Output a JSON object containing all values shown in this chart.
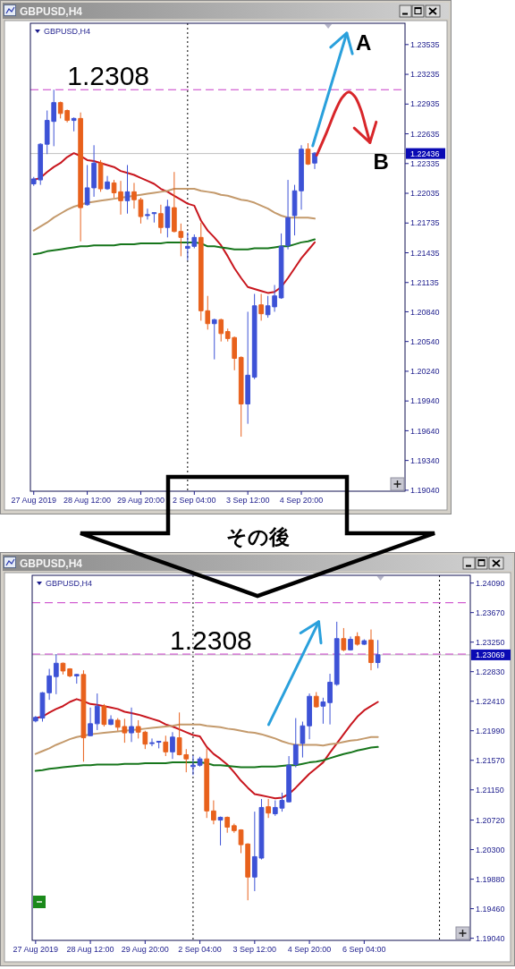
{
  "chart_data": [
    {
      "type": "candlestick",
      "title": "GBPUSD,H4",
      "subtitle": "GBPUSD,H4",
      "categories": [
        "27 Aug 2019",
        null,
        null,
        null,
        null,
        null,
        null,
        null,
        "28 Aug 12:00",
        null,
        null,
        null,
        null,
        null,
        null,
        null,
        "29 Aug 20:00",
        null,
        null,
        null,
        null,
        null,
        null,
        null,
        "2 Sep 04:00",
        null,
        null,
        null,
        null,
        null,
        null,
        null,
        "3 Sep 12:00",
        null,
        null,
        null,
        null,
        null,
        null,
        null,
        "4 Sep 20:00",
        null,
        null,
        null,
        null,
        null,
        null,
        null,
        null,
        null,
        null,
        null,
        null,
        null,
        null,
        null
      ],
      "ohlc": [
        [
          1.2213,
          1.222,
          1.2211,
          1.2218
        ],
        [
          1.2217,
          1.2254,
          1.2212,
          1.2253
        ],
        [
          1.2253,
          1.2287,
          1.2243,
          1.2277
        ],
        [
          1.2276,
          1.2308,
          1.2251,
          1.2295
        ],
        [
          1.2295,
          1.2296,
          1.2279,
          1.2284
        ],
        [
          1.2287,
          1.2288,
          1.2275,
          1.2277
        ],
        [
          1.2277,
          1.228,
          1.2266,
          1.2279
        ],
        [
          1.2279,
          1.2285,
          1.2155,
          1.2189
        ],
        [
          1.2192,
          1.2232,
          1.2191,
          1.2209
        ],
        [
          1.2209,
          1.2252,
          1.22,
          1.2234
        ],
        [
          1.2234,
          1.2237,
          1.2205,
          1.2208
        ],
        [
          1.2208,
          1.2221,
          1.2207,
          1.2215
        ],
        [
          1.2214,
          1.2217,
          1.2199,
          1.2204
        ],
        [
          1.2205,
          1.2216,
          1.2182,
          1.2196
        ],
        [
          1.2196,
          1.2232,
          1.2183,
          1.2205
        ],
        [
          1.2205,
          1.2214,
          1.2188,
          1.2197
        ],
        [
          1.2197,
          1.2199,
          1.2173,
          1.218
        ],
        [
          1.2181,
          1.2188,
          1.2177,
          1.2182
        ],
        [
          1.2183,
          1.2184,
          1.2174,
          1.2184
        ],
        [
          1.2183,
          1.2192,
          1.2163,
          1.2169
        ],
        [
          1.2169,
          1.2197,
          1.2159,
          1.219
        ],
        [
          1.2189,
          1.2225,
          1.2164,
          1.2165
        ],
        [
          1.2165,
          1.2173,
          1.214,
          1.2159
        ],
        [
          1.2148,
          1.2164,
          1.2136,
          1.215
        ],
        [
          1.215,
          1.2162,
          1.2148,
          1.2159
        ],
        [
          1.2159,
          1.2174,
          1.2075,
          1.2085
        ],
        [
          1.2085,
          1.21,
          1.2066,
          1.2072
        ],
        [
          1.2072,
          1.2077,
          1.2036,
          1.2076
        ],
        [
          1.2076,
          1.2077,
          1.2054,
          1.2062
        ],
        [
          1.2064,
          1.2067,
          1.2054,
          1.2057
        ],
        [
          1.2058,
          1.2059,
          1.2025,
          1.2037
        ],
        [
          1.2038,
          1.2039,
          1.1958,
          1.1991
        ],
        [
          1.1991,
          1.2084,
          1.1971,
          1.202
        ],
        [
          1.2018,
          1.2102,
          1.2016,
          1.209
        ],
        [
          1.2091,
          1.2102,
          1.2075,
          1.2082
        ],
        [
          1.2081,
          1.21,
          1.2078,
          1.209
        ],
        [
          1.2089,
          1.2111,
          1.2084,
          1.21
        ],
        [
          1.2098,
          1.2163,
          1.2097,
          1.215
        ],
        [
          1.2151,
          1.2217,
          1.2147,
          1.2179
        ],
        [
          1.2181,
          1.2212,
          1.2161,
          1.2206
        ],
        [
          1.2206,
          1.2252,
          1.2187,
          1.2248
        ],
        [
          1.2248,
          1.2254,
          1.2232,
          1.2233
        ],
        [
          1.2234,
          1.2245,
          1.2228,
          1.2244
        ],
        null,
        null,
        null,
        null,
        null,
        null,
        null,
        null,
        null,
        null,
        null,
        null,
        null
      ],
      "colors": [
        "#3d52d6",
        "#3d52d6",
        "#3d52d6",
        "#3d52d6",
        "#e8611c",
        "#e8611c",
        "#3d52d6",
        "#e8611c",
        "#3d52d6",
        "#3d52d6",
        "#e8611c",
        "#3d52d6",
        "#e8611c",
        "#e8611c",
        "#3d52d6",
        "#e8611c",
        "#e8611c",
        "#3d52d6",
        "#3d52d6",
        "#e8611c",
        "#3d52d6",
        "#e8611c",
        "#e8611c",
        "#3d52d6",
        "#3d52d6",
        "#e8611c",
        "#e8611c",
        "#3d52d6",
        "#e8611c",
        "#e8611c",
        "#e8611c",
        "#e8611c",
        "#3d52d6",
        "#3d52d6",
        "#e8611c",
        "#3d52d6",
        "#3d52d6",
        "#3d52d6",
        "#3d52d6",
        "#3d52d6",
        "#3d52d6",
        "#e8611c",
        "#3d52d6",
        null,
        null,
        null,
        null,
        null,
        null,
        null,
        null,
        null,
        null,
        null,
        null,
        null
      ],
      "series": [
        {
          "type": "line",
          "color": "#c8161e",
          "values": [
            1.2217,
            1.2219,
            1.2225,
            1.223,
            1.2234,
            1.224,
            1.2244,
            1.2241,
            1.2237,
            1.2236,
            1.2234,
            1.2232,
            1.223,
            1.2226,
            1.2224,
            1.2222,
            1.2219,
            1.2216,
            1.2213,
            1.2208,
            1.2205,
            1.2201,
            1.2197,
            1.2193,
            1.2191,
            1.2176,
            1.2166,
            1.2159,
            1.2151,
            1.214,
            1.2128,
            1.2118,
            1.2109,
            1.2107,
            1.2105,
            1.2103,
            1.2104,
            1.2109,
            1.2118,
            1.2128,
            1.2138,
            1.2146,
            1.2154,
            null,
            null,
            null,
            null,
            null,
            null,
            null,
            null,
            null,
            null,
            null,
            null,
            null
          ]
        },
        {
          "type": "line",
          "color": "#c49a6c",
          "values": [
            1.2166,
            1.217,
            1.2174,
            1.2179,
            1.2183,
            1.2187,
            1.219,
            1.2192,
            1.2194,
            1.2195,
            1.2196,
            1.2197,
            1.2198,
            1.2199,
            1.22,
            1.2201,
            1.2202,
            1.2203,
            1.2204,
            1.2205,
            1.2206,
            1.2208,
            1.2208,
            1.2208,
            1.2208,
            1.2206,
            1.2205,
            1.2204,
            1.2202,
            1.2201,
            1.2199,
            1.2197,
            1.2196,
            1.2194,
            1.2191,
            1.2188,
            1.2184,
            1.2181,
            1.2179,
            1.2179,
            1.2179,
            1.2179,
            1.2178,
            null,
            null,
            null,
            null,
            null,
            null,
            null,
            null,
            null,
            null,
            null,
            null,
            null
          ]
        },
        {
          "type": "line",
          "color": "#17761c",
          "values": [
            1.2142,
            1.2143,
            1.2145,
            1.2146,
            1.2147,
            1.2148,
            1.2149,
            1.215,
            1.215,
            1.2151,
            1.2151,
            1.2151,
            1.2151,
            1.2152,
            1.2152,
            1.2152,
            1.2153,
            1.2153,
            1.2153,
            1.2153,
            1.2154,
            1.2154,
            1.2154,
            1.2154,
            1.2154,
            1.2153,
            1.215,
            1.215,
            1.2149,
            1.2148,
            1.2147,
            1.2147,
            1.2147,
            1.2148,
            1.2148,
            1.2148,
            1.2149,
            1.215,
            1.215,
            1.2152,
            1.2154,
            1.2155,
            1.2157,
            null,
            null,
            null,
            null,
            null,
            null,
            null,
            null,
            null,
            null,
            null,
            null,
            null
          ]
        }
      ],
      "ylim": [
        1.1903,
        1.2375
      ],
      "yticks": [
        1.23535,
        1.23235,
        1.22935,
        1.22635,
        1.22335,
        1.22035,
        1.21735,
        1.21435,
        1.21135,
        {
          "value": 1.2084,
          "label": "1.20840"
        },
        {
          "value": 1.2054,
          "label": "1.20540"
        },
        {
          "value": 1.2024,
          "label": "1.20240"
        },
        {
          "value": 1.1994,
          "label": "1.19940"
        },
        {
          "value": 1.1964,
          "label": "1.19640"
        },
        {
          "value": 1.1934,
          "label": "1.19340"
        },
        {
          "value": 1.1904,
          "label": "1.19040"
        }
      ],
      "ref_lines": [
        {
          "axis": "y",
          "value": 1.22436,
          "label": "1.22436",
          "color": "#c0c0c0"
        },
        {
          "axis": "y",
          "value": 1.2308,
          "color": "#c83cc8",
          "line_style": "dashed"
        }
      ],
      "annotations": [
        {
          "text": "1.2308",
          "y": 1.2308
        },
        "A",
        "B"
      ]
    },
    {
      "type": "candlestick",
      "title": "GBPUSD,H4",
      "subtitle": "GBPUSD,H4",
      "categories": [
        "27 Aug 2019",
        null,
        null,
        null,
        null,
        null,
        null,
        null,
        "28 Aug 12:00",
        null,
        null,
        null,
        null,
        null,
        null,
        null,
        "29 Aug 20:00",
        null,
        null,
        null,
        null,
        null,
        null,
        null,
        "2 Sep 04:00",
        null,
        null,
        null,
        null,
        null,
        null,
        null,
        "3 Sep 12:00",
        null,
        null,
        null,
        null,
        null,
        null,
        null,
        "4 Sep 20:00",
        null,
        null,
        null,
        null,
        null,
        null,
        null,
        "6 Sep 04:00",
        null,
        null,
        null,
        null,
        null,
        null,
        null,
        null,
        null,
        null,
        null,
        null,
        null,
        null,
        null
      ],
      "ohlc": [
        [
          1.2213,
          1.222,
          1.2211,
          1.2218
        ],
        [
          1.2217,
          1.2254,
          1.2212,
          1.2253
        ],
        [
          1.2253,
          1.2287,
          1.2243,
          1.2277
        ],
        [
          1.2276,
          1.2308,
          1.2251,
          1.2295
        ],
        [
          1.2295,
          1.2296,
          1.2279,
          1.2284
        ],
        [
          1.2287,
          1.2288,
          1.2275,
          1.2277
        ],
        [
          1.2277,
          1.228,
          1.2266,
          1.2279
        ],
        [
          1.2279,
          1.2285,
          1.2155,
          1.2189
        ],
        [
          1.2192,
          1.2232,
          1.2191,
          1.2209
        ],
        [
          1.2209,
          1.2252,
          1.22,
          1.2234
        ],
        [
          1.2234,
          1.2237,
          1.2205,
          1.2208
        ],
        [
          1.2208,
          1.2221,
          1.2207,
          1.2215
        ],
        [
          1.2214,
          1.2217,
          1.2199,
          1.2204
        ],
        [
          1.2205,
          1.2216,
          1.2182,
          1.2196
        ],
        [
          1.2196,
          1.2232,
          1.2183,
          1.2205
        ],
        [
          1.2205,
          1.2214,
          1.2188,
          1.2197
        ],
        [
          1.2197,
          1.2199,
          1.2173,
          1.218
        ],
        [
          1.2181,
          1.2188,
          1.2177,
          1.2182
        ],
        [
          1.2183,
          1.2184,
          1.2174,
          1.2184
        ],
        [
          1.2183,
          1.2192,
          1.2163,
          1.2169
        ],
        [
          1.2169,
          1.2197,
          1.2159,
          1.219
        ],
        [
          1.2189,
          1.2225,
          1.2164,
          1.2165
        ],
        [
          1.2165,
          1.2173,
          1.214,
          1.2159
        ],
        [
          1.2148,
          1.2164,
          1.2136,
          1.215
        ],
        [
          1.215,
          1.2162,
          1.2148,
          1.2159
        ],
        [
          1.2159,
          1.2174,
          1.2075,
          1.2085
        ],
        [
          1.2085,
          1.21,
          1.2066,
          1.2072
        ],
        [
          1.2072,
          1.2077,
          1.2036,
          1.2076
        ],
        [
          1.2076,
          1.2077,
          1.2054,
          1.2062
        ],
        [
          1.2064,
          1.2067,
          1.2054,
          1.2057
        ],
        [
          1.2058,
          1.2059,
          1.2025,
          1.2037
        ],
        [
          1.2038,
          1.2039,
          1.1958,
          1.1991
        ],
        [
          1.1991,
          1.2084,
          1.1971,
          1.202
        ],
        [
          1.2018,
          1.2102,
          1.2016,
          1.209
        ],
        [
          1.2091,
          1.2102,
          1.2075,
          1.2082
        ],
        [
          1.2081,
          1.21,
          1.2078,
          1.209
        ],
        [
          1.2089,
          1.2111,
          1.2084,
          1.21
        ],
        [
          1.2098,
          1.2163,
          1.2097,
          1.215
        ],
        [
          1.2151,
          1.2217,
          1.2147,
          1.2179
        ],
        [
          1.2181,
          1.2212,
          1.2161,
          1.2206
        ],
        [
          1.2206,
          1.2252,
          1.2187,
          1.2248
        ],
        [
          1.2248,
          1.2254,
          1.2232,
          1.2233
        ],
        [
          1.2234,
          1.2246,
          1.2209,
          1.224
        ],
        [
          1.2239,
          1.228,
          1.2208,
          1.2268
        ],
        [
          1.2265,
          1.2354,
          1.2263,
          1.233
        ],
        [
          1.233,
          1.2345,
          1.2312,
          1.2314
        ],
        [
          1.2314,
          1.2333,
          1.2313,
          1.2329
        ],
        [
          1.2333,
          1.2339,
          1.232,
          1.2322
        ],
        [
          1.2322,
          1.2329,
          1.2321,
          1.2327
        ],
        [
          1.2328,
          1.2343,
          1.2285,
          1.2296
        ],
        [
          1.2296,
          1.2328,
          1.2288,
          1.2307
        ],
        null,
        null,
        null,
        null,
        null,
        null,
        null,
        null,
        null,
        null,
        null,
        null,
        null
      ],
      "colors": [
        "#3d52d6",
        "#3d52d6",
        "#3d52d6",
        "#3d52d6",
        "#e8611c",
        "#e8611c",
        "#3d52d6",
        "#e8611c",
        "#3d52d6",
        "#3d52d6",
        "#e8611c",
        "#3d52d6",
        "#e8611c",
        "#e8611c",
        "#3d52d6",
        "#e8611c",
        "#e8611c",
        "#3d52d6",
        "#3d52d6",
        "#e8611c",
        "#3d52d6",
        "#e8611c",
        "#e8611c",
        "#3d52d6",
        "#3d52d6",
        "#e8611c",
        "#e8611c",
        "#3d52d6",
        "#e8611c",
        "#e8611c",
        "#e8611c",
        "#e8611c",
        "#3d52d6",
        "#3d52d6",
        "#e8611c",
        "#3d52d6",
        "#3d52d6",
        "#3d52d6",
        "#3d52d6",
        "#3d52d6",
        "#3d52d6",
        "#e8611c",
        "#3d52d6",
        "#3d52d6",
        "#3d52d6",
        "#e8611c",
        "#3d52d6",
        "#e8611c",
        "#3d52d6",
        "#e8611c",
        "#3d52d6",
        null,
        null,
        null,
        null,
        null,
        null,
        null,
        null,
        null,
        null,
        null,
        null,
        null
      ],
      "series": [
        {
          "type": "line",
          "color": "#c8161e",
          "values": [
            1.2217,
            1.2219,
            1.2225,
            1.223,
            1.2234,
            1.224,
            1.2244,
            1.2241,
            1.2237,
            1.2236,
            1.2234,
            1.2232,
            1.223,
            1.2226,
            1.2224,
            1.2222,
            1.2219,
            1.2216,
            1.2213,
            1.2208,
            1.2205,
            1.2201,
            1.2197,
            1.2193,
            1.2191,
            1.2176,
            1.2166,
            1.2159,
            1.2151,
            1.214,
            1.2128,
            1.2118,
            1.2109,
            1.2107,
            1.2105,
            1.2103,
            1.2104,
            1.2109,
            1.2118,
            1.2128,
            1.2138,
            1.2146,
            1.2154,
            1.2168,
            1.2181,
            1.2194,
            1.2207,
            1.2219,
            1.2228,
            1.2234,
            1.224,
            null,
            null,
            null,
            null,
            null,
            null,
            null,
            null,
            null,
            null,
            null,
            null,
            null
          ]
        },
        {
          "type": "line",
          "color": "#c49a6c",
          "values": [
            1.2166,
            1.217,
            1.2174,
            1.2179,
            1.2183,
            1.2187,
            1.219,
            1.2192,
            1.2194,
            1.2195,
            1.2196,
            1.2197,
            1.2198,
            1.2199,
            1.22,
            1.2201,
            1.2202,
            1.2203,
            1.2204,
            1.2205,
            1.2206,
            1.2208,
            1.2208,
            1.2208,
            1.2208,
            1.2206,
            1.2205,
            1.2204,
            1.2202,
            1.2201,
            1.2199,
            1.2197,
            1.2196,
            1.2194,
            1.2191,
            1.2188,
            1.2184,
            1.2181,
            1.2179,
            1.2179,
            1.2179,
            1.2179,
            1.2178,
            1.218,
            1.2181,
            1.2183,
            1.2185,
            1.2186,
            1.2188,
            1.219,
            1.219,
            null,
            null,
            null,
            null,
            null,
            null,
            null,
            null,
            null,
            null,
            null,
            null,
            null
          ]
        },
        {
          "type": "line",
          "color": "#17761c",
          "values": [
            1.2142,
            1.2143,
            1.2145,
            1.2146,
            1.2147,
            1.2148,
            1.2149,
            1.215,
            1.215,
            1.2151,
            1.2151,
            1.2151,
            1.2151,
            1.2152,
            1.2152,
            1.2152,
            1.2153,
            1.2153,
            1.2153,
            1.2153,
            1.2154,
            1.2154,
            1.2154,
            1.2154,
            1.2154,
            1.2153,
            1.215,
            1.215,
            1.2149,
            1.2148,
            1.2147,
            1.2147,
            1.2147,
            1.2148,
            1.2148,
            1.2148,
            1.2149,
            1.215,
            1.215,
            1.2152,
            1.2154,
            1.2155,
            1.2157,
            1.216,
            1.2163,
            1.2166,
            1.2168,
            1.2171,
            1.2173,
            1.2175,
            1.2176,
            null,
            null,
            null,
            null,
            null,
            null,
            null,
            null,
            null,
            null,
            null,
            null,
            null
          ]
        }
      ],
      "ylim": [
        1.1901,
        1.242
      ],
      "yticks": [
        {
          "value": 1.2409,
          "label": "1.24090"
        },
        {
          "value": 1.2367,
          "label": "1.23670"
        },
        {
          "value": 1.2325,
          "label": "1.23250"
        },
        {
          "value": 1.2283,
          "label": "1.22830"
        },
        {
          "value": 1.2241,
          "label": "1.22410"
        },
        {
          "value": 1.2199,
          "label": "1.21990"
        },
        {
          "value": 1.2157,
          "label": "1.21570"
        },
        {
          "value": 1.2115,
          "label": "1.21150"
        },
        {
          "value": 1.2072,
          "label": "1.20720"
        },
        {
          "value": 1.203,
          "label": "1.20300"
        },
        {
          "value": 1.1988,
          "label": "1.19880"
        },
        {
          "value": 1.1946,
          "label": "1.19460"
        },
        {
          "value": 1.1904,
          "label": "1.19040"
        }
      ],
      "ref_lines": [
        {
          "axis": "y",
          "value": 1.23069,
          "label": "1.23069",
          "color": "#c0c0c0"
        },
        {
          "axis": "y",
          "value": 1.2381,
          "color": "#c83cc8",
          "line_style": "dashed"
        },
        {
          "axis": "y",
          "value": 1.2308,
          "color": "#c83cc8",
          "line_style": "dashed"
        }
      ],
      "annotations": [
        "その後",
        {
          "text": "1.2308",
          "y": 1.2308
        }
      ]
    }
  ]
}
